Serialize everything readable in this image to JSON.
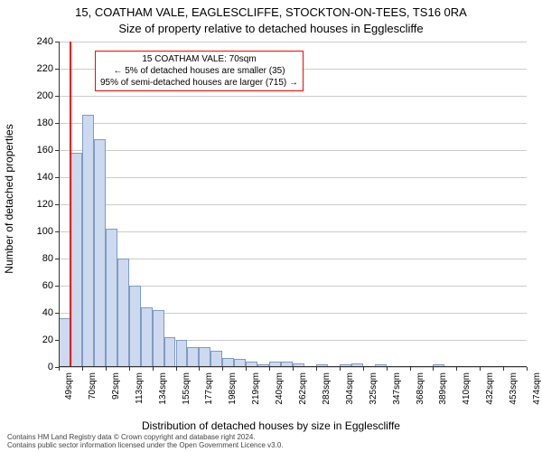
{
  "title_main": "15, COATHAM VALE, EAGLESCLIFFE, STOCKTON-ON-TEES, TS16 0RA",
  "title_sub": "Size of property relative to detached houses in Egglescliffe",
  "y_axis_title": "Number of detached properties",
  "x_axis_title": "Distribution of detached houses by size in Egglescliffe",
  "footer_line1": "Contains HM Land Registry data © Crown copyright and database right 2024.",
  "footer_line2": "Contains public sector information licensed under the Open Government Licence v3.0.",
  "annotation": {
    "line1": "15 COATHAM VALE: 70sqm",
    "line2": "← 5% of detached houses are smaller (35)",
    "line3": "95% of semi-detached houses are larger (715) →"
  },
  "chart": {
    "type": "histogram",
    "ylim": [
      0,
      240
    ],
    "ytick_step": 20,
    "bar_fill": "#cdd9ef",
    "bar_stroke": "#7f9bc4",
    "grid_color": "#cccccc",
    "indicator_x_value": 70,
    "indicator_color": "#ff0000",
    "x_start": 49,
    "x_step": 21.3,
    "x_labels": [
      "49sqm",
      "70sqm",
      "92sqm",
      "113sqm",
      "134sqm",
      "155sqm",
      "177sqm",
      "198sqm",
      "219sqm",
      "240sqm",
      "262sqm",
      "283sqm",
      "304sqm",
      "325sqm",
      "347sqm",
      "368sqm",
      "389sqm",
      "410sqm",
      "432sqm",
      "453sqm",
      "474sqm"
    ],
    "values": [
      36,
      158,
      186,
      168,
      102,
      80,
      60,
      44,
      42,
      22,
      20,
      15,
      15,
      12,
      7,
      6,
      4,
      2,
      4,
      4,
      3,
      0,
      2,
      0,
      2,
      3,
      0,
      2,
      0,
      0,
      0,
      0,
      2,
      0,
      0,
      0,
      0,
      0,
      0,
      0
    ]
  }
}
